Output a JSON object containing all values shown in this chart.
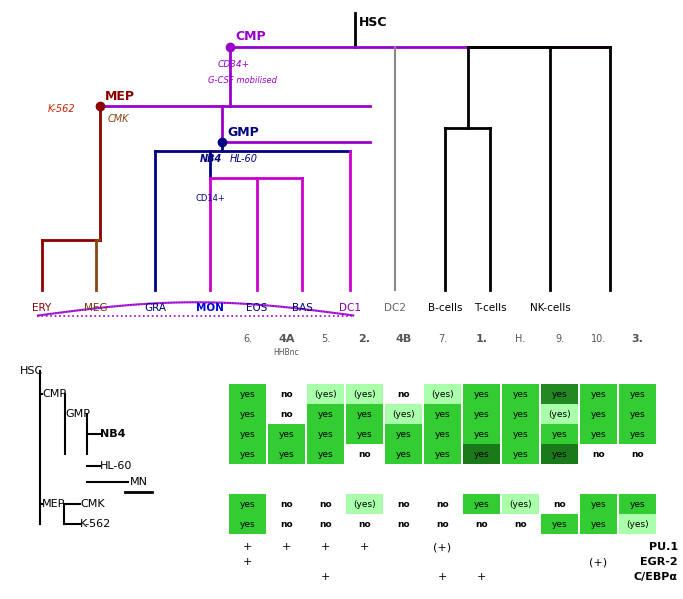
{
  "fig_width": 6.83,
  "fig_height": 5.99,
  "dpi": 100,
  "colors": {
    "HSC_line": "#000000",
    "CMP_branch": "#9900cc",
    "MEP_branch": "#8b0000",
    "MEG_branch": "#8b4513",
    "GMP_branch": "#000080",
    "MON_branch": "#cc00cc",
    "DC1_branch": "#cc00cc",
    "DC_line": "#888888",
    "lymph_line": "#000000"
  },
  "table_col_labels": [
    "6.",
    "4A",
    "5.",
    "2.",
    "4B",
    "7.",
    "1.",
    "H.",
    "9.",
    "10.",
    "3."
  ],
  "table_col_bold": [
    false,
    true,
    false,
    true,
    true,
    false,
    true,
    false,
    false,
    false,
    true
  ],
  "hh_label": "HHBnc",
  "table_rows": [
    {
      "label": "CMP",
      "data_idx": 0
    },
    {
      "label": "NB4",
      "data_idx": 1
    },
    {
      "label": "HL-60",
      "data_idx": 2
    },
    {
      "label": "MN",
      "data_idx": 3
    },
    {
      "label": "CMK",
      "data_idx": 4
    },
    {
      "label": "K-562",
      "data_idx": 5
    }
  ],
  "table_data": [
    [
      "yes",
      "no",
      "(yes)",
      "(yes)",
      "no",
      "(yes)",
      "yes",
      "yes",
      "yes",
      "yes",
      "yes"
    ],
    [
      "yes",
      "no",
      "yes",
      "yes",
      "(yes)",
      "yes",
      "yes",
      "yes",
      "(yes)",
      "yes",
      "yes"
    ],
    [
      "yes",
      "yes",
      "yes",
      "yes",
      "yes",
      "yes",
      "yes",
      "yes",
      "yes",
      "yes",
      "yes"
    ],
    [
      "yes",
      "yes",
      "yes",
      "no",
      "yes",
      "yes",
      "yes",
      "yes",
      "yes",
      "no",
      "no"
    ],
    [
      "yes",
      "no",
      "no",
      "(yes)",
      "no",
      "no",
      "yes",
      "(yes)",
      "no",
      "yes",
      "yes"
    ],
    [
      "yes",
      "no",
      "no",
      "no",
      "no",
      "no",
      "no",
      "no",
      "yes",
      "yes",
      "(yes)"
    ]
  ],
  "cell_colors": [
    [
      "#33cc33",
      "#ffffff",
      "#aaffaa",
      "#aaffaa",
      "#ffffff",
      "#aaffaa",
      "#33cc33",
      "#33cc33",
      "#228822",
      "#33cc33",
      "#33cc33"
    ],
    [
      "#33cc33",
      "#ffffff",
      "#33cc33",
      "#33cc33",
      "#aaffaa",
      "#33cc33",
      "#33cc33",
      "#33cc33",
      "#aaffaa",
      "#33cc33",
      "#33cc33"
    ],
    [
      "#33cc33",
      "#33cc33",
      "#33cc33",
      "#33cc33",
      "#33cc33",
      "#33cc33",
      "#33cc33",
      "#33cc33",
      "#33cc33",
      "#33cc33",
      "#33cc33"
    ],
    [
      "#33cc33",
      "#33cc33",
      "#33cc33",
      "#ffffff",
      "#33cc33",
      "#33cc33",
      "#1a7a1a",
      "#33cc33",
      "#1a7a1a",
      "#ffffff",
      "#ffffff"
    ],
    [
      "#33cc33",
      "#ffffff",
      "#ffffff",
      "#aaffaa",
      "#ffffff",
      "#ffffff",
      "#33cc33",
      "#aaffaa",
      "#ffffff",
      "#33cc33",
      "#33cc33"
    ],
    [
      "#33cc33",
      "#ffffff",
      "#ffffff",
      "#ffffff",
      "#ffffff",
      "#ffffff",
      "#ffffff",
      "#ffffff",
      "#33cc33",
      "#33cc33",
      "#aaffaa"
    ]
  ],
  "pu1_plus": [
    "+",
    "+",
    "+",
    "+",
    "",
    "(+)",
    "",
    "",
    "",
    "",
    ""
  ],
  "egr2_plus": [
    "+",
    "",
    "",
    "",
    "",
    "",
    "",
    "",
    "",
    "(+)",
    ""
  ],
  "cebp_plus": [
    "",
    "",
    "+",
    "",
    "",
    "+",
    "+",
    "",
    "",
    "",
    ""
  ]
}
